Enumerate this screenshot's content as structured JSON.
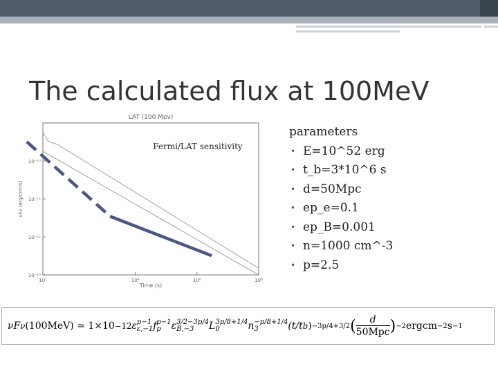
{
  "slide": {
    "title": "The calculated flux at 100MeV"
  },
  "chart_data": {
    "type": "line",
    "title": "LAT (100 Mev)",
    "xlabel": "Time (s)",
    "ylabel": "νFν (erg/cm²/s)",
    "xscale": "log",
    "yscale": "log",
    "xlim": [
      10,
      100000000
    ],
    "ylim": [
      1e-13,
      1e-09
    ],
    "x_ticks": [
      "10¹",
      "10⁴",
      "10⁶",
      "10⁸"
    ],
    "x_tick_values": [
      10,
      10000,
      1000000,
      100000000
    ],
    "y_ticks": [
      "10⁻¹⁰",
      "10⁻¹¹",
      "10⁻¹²",
      "10⁻¹³"
    ],
    "y_tick_values": [
      1e-10,
      1e-11,
      1e-12,
      1e-13
    ],
    "series": [
      {
        "name": "",
        "style": "thin-line",
        "x": [
          10,
          15,
          20,
          30,
          100000000
        ],
        "y": [
          5.5e-10,
          3.3e-10,
          3e-10,
          2.7e-10,
          1.5e-13
        ]
      },
      {
        "name": "",
        "style": "thin-line",
        "x": [
          10,
          100000000
        ],
        "y": [
          1.8e-10,
          1e-13
        ]
      },
      {
        "name": "",
        "style": "thick-dashed",
        "x": [
          3,
          1500
        ],
        "y": [
          3.2e-10,
          3.5e-12
        ]
      },
      {
        "name": "",
        "style": "thick-solid",
        "x": [
          1500,
          3000000
        ],
        "y": [
          3.5e-12,
          3.2e-13
        ]
      }
    ],
    "annotation": "Fermi/LAT sensitivity",
    "grid": false,
    "colors": {
      "model_line": "#4a5684",
      "curve": "#8a8a8a",
      "axis": "#555555"
    }
  },
  "parameters": {
    "heading": "parameters",
    "items": [
      "E=10^52 erg",
      "t_b=3*10^6 s",
      "d=50Mpc",
      "ep_e=0.1",
      "ep_B=0.001",
      "n=1000  cm^-3",
      "p=2.5"
    ],
    "bullet": "•"
  },
  "formula": {
    "lhs": "νF",
    "lhs_sub": "ν",
    "arg": "(100MeV) ≃ 1×10",
    "exp1": "−12",
    "eps_e": "ε",
    "eps_e_sup": "p−1",
    "eps_e_sub": "ε,−1",
    "f_p": "f",
    "f_p_sup": "p−1",
    "f_p_sub": "p",
    "eps_B": "ε",
    "eps_B_sup": "3/2−3p/4",
    "eps_B_sub": "B,−3",
    "L0": "L",
    "L0_sup": "3p/8+1/4",
    "L0_sub": "0",
    "n3": "n",
    "n3_sup": "−p/8+1/4",
    "n3_sub": "3",
    "tt": "(t/t",
    "tt_sub": "b",
    "tt_close": ")",
    "tt_sup": "−3p/4+3/2",
    "frac_open": "(",
    "frac_num": "d",
    "frac_den": "50Mpc",
    "frac_close": ")",
    "frac_sup": "−2",
    "units": "ergcm",
    "units_sup1": "−2",
    "units_s": "s",
    "units_sup2": "−1"
  },
  "theme": {
    "header_dark": "#4f5b67",
    "header_light": "#a9b3bc"
  }
}
